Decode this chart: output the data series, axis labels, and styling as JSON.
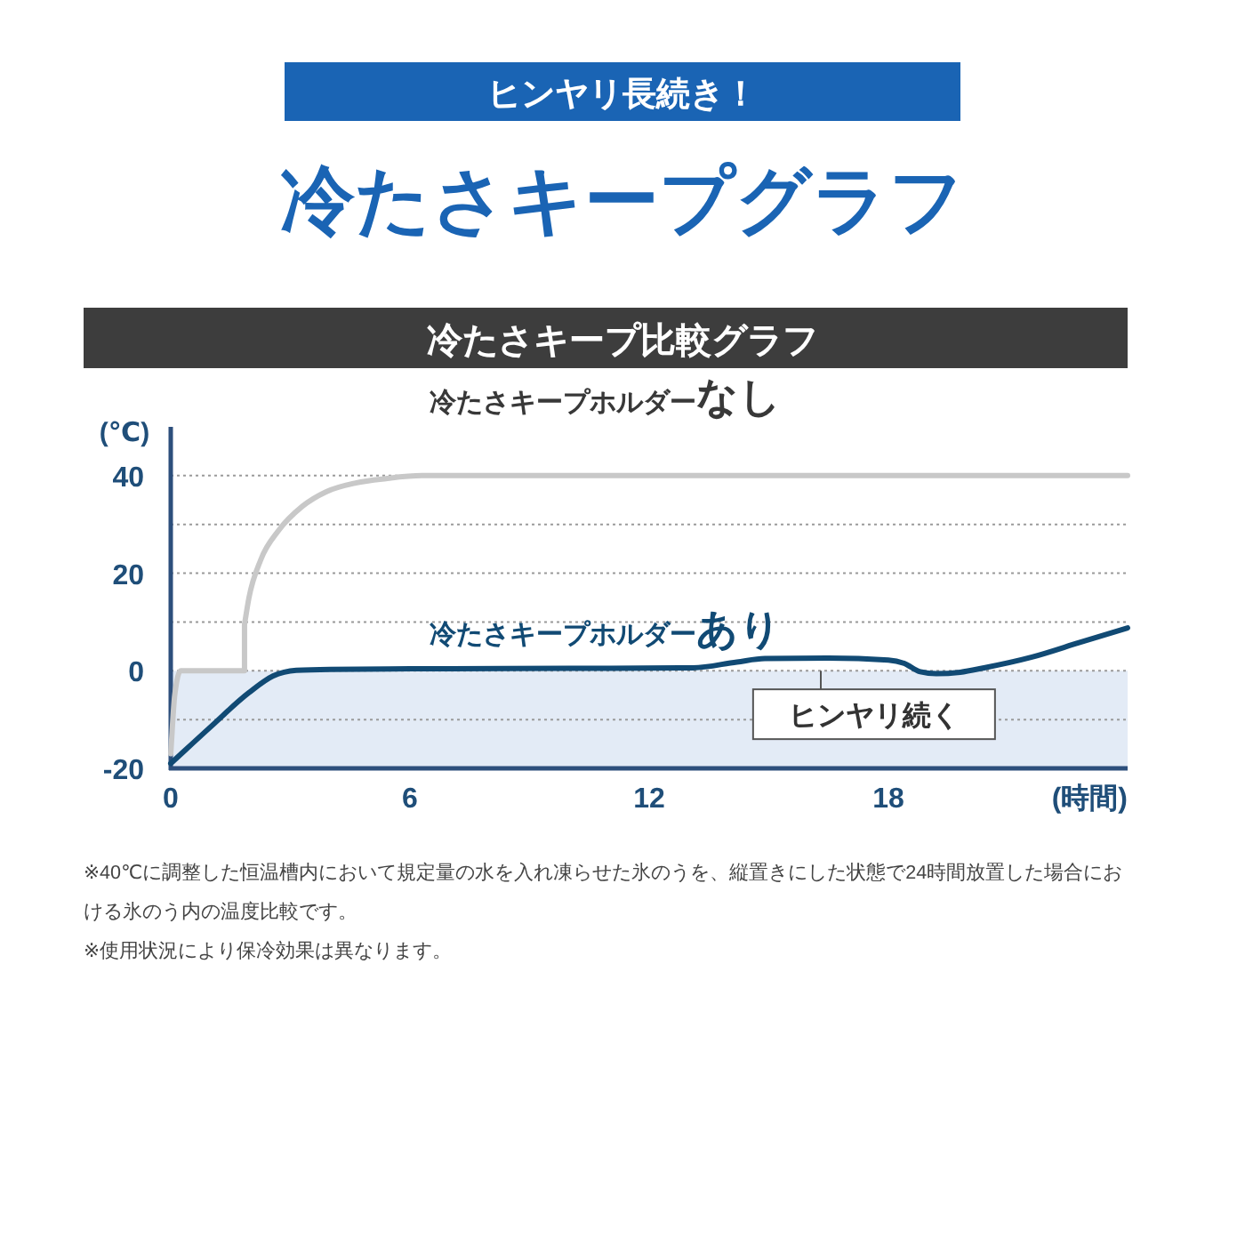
{
  "chart_data": {
    "type": "line",
    "title": "冷たさキープグラフ",
    "subtitle": "ヒンヤリ長続き！",
    "xlabel": "(時間)",
    "ylabel": "(℃)",
    "annotations": [
      "冷たさキープ比較グラフ",
      "※40℃に調整した恒温槽内において規定量の水を入れ凍らせた氷のうを、縦置きにした状態で24時間放置した場合における氷のう内の温度比較です。",
      "※使用状況により保冷効果は異なります。"
    ],
    "series": [
      {
        "name": "冷たさキープホルダーなし",
        "color": "#c8c8c8",
        "x": [
          0,
          0.1,
          0.25,
          1.85,
          1.85,
          1.96,
          2.26,
          2.71,
          3.3,
          3.9,
          4.64,
          5.4,
          6.3,
          24
        ],
        "values": [
          -17,
          -5,
          0,
          0,
          9.5,
          14.9,
          22.8,
          28.8,
          33.7,
          36.7,
          38.5,
          39.4,
          40,
          40
        ]
      },
      {
        "name": "冷たさキープホルダーあり",
        "color": "#114a74",
        "x": [
          0,
          1,
          1.96,
          2.56,
          3.15,
          4,
          6,
          10,
          13.1,
          14.2,
          14.9,
          16.5,
          18,
          18.4,
          18.8,
          19.2,
          19.8,
          20.4,
          21.6,
          22.8,
          24
        ],
        "values": [
          -19,
          -11.5,
          -4.5,
          -1.1,
          0.1,
          0.3,
          0.4,
          0.5,
          0.6,
          1.8,
          2.5,
          2.6,
          2.2,
          1.5,
          -0.2,
          -0.6,
          -0.3,
          0.6,
          2.8,
          5.8,
          8.8
        ]
      }
    ],
    "xlim": [
      0,
      24
    ],
    "xticks": [
      0,
      6,
      12,
      18
    ],
    "ylim": [
      -20,
      50
    ],
    "yticks": [
      -20,
      {
        "value": -10,
        "label": null
      },
      0,
      {
        "value": 10,
        "label": null
      },
      20,
      {
        "value": 30,
        "label": null
      },
      40
    ],
    "bands": [
      {
        "axis": "y",
        "from": -20,
        "to": 0,
        "label": "ヒンヤリ続く",
        "color": "#e3ebf6"
      }
    ],
    "grid": "y",
    "legend": false,
    "marker": "none",
    "line_style": "solid"
  }
}
